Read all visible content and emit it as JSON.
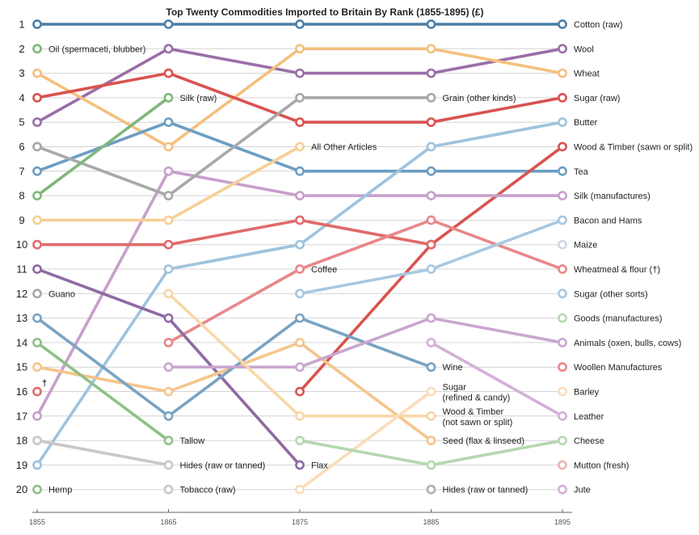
{
  "chart_data": {
    "type": "line",
    "title": "Top Twenty Commodities Imported to Britain By Rank (1855-1895) (£)",
    "x": [
      "1855",
      "1865",
      "1875",
      "1885",
      "1895"
    ],
    "y_ticks": [
      "1",
      "2",
      "3",
      "4",
      "5",
      "6",
      "7",
      "8",
      "9",
      "10",
      "11",
      "12",
      "13",
      "14",
      "15",
      "16",
      "17",
      "18",
      "19",
      "20"
    ],
    "y_axis": "rank, 1 at top",
    "grid": true,
    "series": [
      {
        "color": "#4b7fa6",
        "values": [
          1,
          1,
          1,
          1,
          1
        ]
      },
      {
        "color": "#9b6ea8",
        "values": [
          5,
          2,
          3,
          3,
          2
        ]
      },
      {
        "color": "#f4c07e",
        "values": [
          3,
          6,
          2,
          2,
          3
        ]
      },
      {
        "color": "#d9534f",
        "values": [
          4,
          3,
          5,
          5,
          4
        ]
      },
      {
        "color": "#6c9ec4",
        "values": [
          7,
          5,
          7,
          7,
          7
        ]
      },
      {
        "color": "#d9534f",
        "values": [
          null,
          null,
          16,
          10,
          6
        ]
      },
      {
        "color": "#c79fcc",
        "values": [
          17,
          7,
          8,
          8,
          8
        ]
      },
      {
        "color": "#9ec3dd",
        "values": [
          19,
          11,
          10,
          6,
          5
        ]
      },
      {
        "color": "#f7cf95",
        "values": [
          9,
          9,
          6,
          null,
          null
        ]
      },
      {
        "color": "#e06b6b",
        "values": [
          10,
          10,
          9,
          10,
          null
        ]
      },
      {
        "color": "#e8878a",
        "values": [
          null,
          14,
          11,
          9,
          11
        ]
      },
      {
        "color": "#a9c8e0",
        "values": [
          null,
          null,
          12,
          11,
          9
        ]
      },
      {
        "color": "#8f6aa3",
        "values": [
          11,
          13,
          19,
          null,
          null
        ]
      },
      {
        "color": "#a8a8a8",
        "values": [
          6,
          8,
          4,
          4,
          null
        ]
      },
      {
        "color": "#f6c58a",
        "values": [
          15,
          16,
          14,
          18,
          null
        ]
      },
      {
        "color": "#7aa3c2",
        "values": [
          13,
          17,
          13,
          15,
          null
        ]
      },
      {
        "color": "#c9a6cf",
        "values": [
          null,
          15,
          15,
          13,
          14
        ]
      },
      {
        "color": "#d4b0d8",
        "values": [
          null,
          null,
          null,
          14,
          17
        ]
      },
      {
        "color": "#f8d7a8",
        "values": [
          null,
          12,
          17,
          17,
          null
        ]
      },
      {
        "color": "#fbdcb8",
        "values": [
          null,
          null,
          20,
          16,
          null
        ]
      },
      {
        "color": "#8fbf87",
        "values": [
          14,
          18,
          null,
          null,
          null
        ]
      },
      {
        "color": "#b6d7b0",
        "values": [
          null,
          null,
          18,
          19,
          18
        ]
      },
      {
        "color": "#c8c8c8",
        "values": [
          18,
          19,
          null,
          null,
          null
        ]
      },
      {
        "color": "#7fb77a",
        "values": [
          8,
          4,
          null,
          null,
          null
        ]
      }
    ],
    "dots": [
      {
        "x": "1855",
        "rank": 2,
        "color": "#7fb77a"
      },
      {
        "x": "1855",
        "rank": 12,
        "color": "#a8a8a8"
      },
      {
        "x": "1855",
        "rank": 16,
        "color": "#e06b6b"
      },
      {
        "x": "1855",
        "rank": 20,
        "color": "#8fbf87"
      },
      {
        "x": "1865",
        "rank": 20,
        "color": "#c8c8c8"
      },
      {
        "x": "1885",
        "rank": 20,
        "color": "#b0b0b0"
      },
      {
        "x": "1895",
        "rank": 10,
        "color": "#d0d8e0"
      },
      {
        "x": "1895",
        "rank": 12,
        "color": "#a9c8e0"
      },
      {
        "x": "1895",
        "rank": 13,
        "color": "#b6d7b0"
      },
      {
        "x": "1895",
        "rank": 15,
        "color": "#e8878a"
      },
      {
        "x": "1895",
        "rank": 16,
        "color": "#fbdcb8"
      },
      {
        "x": "1895",
        "rank": 19,
        "color": "#eab4b4"
      },
      {
        "x": "1895",
        "rank": 20,
        "color": "#d4b0d8"
      }
    ],
    "annotations": [
      {
        "x": "1855",
        "rank": 2,
        "lines": [
          "Oil (spermaceti, blubber)"
        ]
      },
      {
        "x": "1855",
        "rank": 12,
        "lines": [
          "Guano"
        ]
      },
      {
        "x": "1855",
        "rank": 20,
        "lines": [
          "Hemp"
        ]
      },
      {
        "x": "1855",
        "rank": 16,
        "lines": [
          "†"
        ],
        "glyph": true
      },
      {
        "x": "1865",
        "rank": 4,
        "lines": [
          "Silk (raw)"
        ]
      },
      {
        "x": "1865",
        "rank": 18,
        "lines": [
          "Tallow"
        ]
      },
      {
        "x": "1865",
        "rank": 19,
        "lines": [
          "Hides (raw or tanned)"
        ]
      },
      {
        "x": "1865",
        "rank": 20,
        "lines": [
          "Tobacco (raw)"
        ]
      },
      {
        "x": "1875",
        "rank": 6,
        "lines": [
          "All Other Articles"
        ]
      },
      {
        "x": "1875",
        "rank": 11,
        "lines": [
          "Coffee"
        ]
      },
      {
        "x": "1875",
        "rank": 19,
        "lines": [
          "Flax"
        ]
      },
      {
        "x": "1885",
        "rank": 4,
        "lines": [
          "Grain (other kinds)"
        ]
      },
      {
        "x": "1885",
        "rank": 15,
        "lines": [
          "Wine"
        ]
      },
      {
        "x": "1885",
        "rank": 16,
        "lines": [
          "Sugar",
          "(refined & candy)"
        ]
      },
      {
        "x": "1885",
        "rank": 17,
        "lines": [
          "Wood & Timber",
          "(not sawn or split)"
        ]
      },
      {
        "x": "1885",
        "rank": 18,
        "lines": [
          "Seed (flax & linseed)"
        ]
      },
      {
        "x": "1885",
        "rank": 20,
        "lines": [
          "Hides (raw or tanned)"
        ]
      }
    ],
    "end_labels": [
      "Cotton (raw)",
      "Wool",
      "Wheat",
      "Sugar (raw)",
      "Butter",
      "Wood & Timber (sawn or split)",
      "Tea",
      "Silk (manufactures)",
      "Bacon and Hams",
      "Maize",
      "Wheatmeal & flour (†)",
      "Sugar (other sorts)",
      "Goods (manufactures)",
      "Animals (oxen, bulls, cows)",
      "Woollen Manufactures",
      "Barley",
      "Leather",
      "Cheese",
      "Mutton (fresh)",
      "Jute"
    ]
  }
}
